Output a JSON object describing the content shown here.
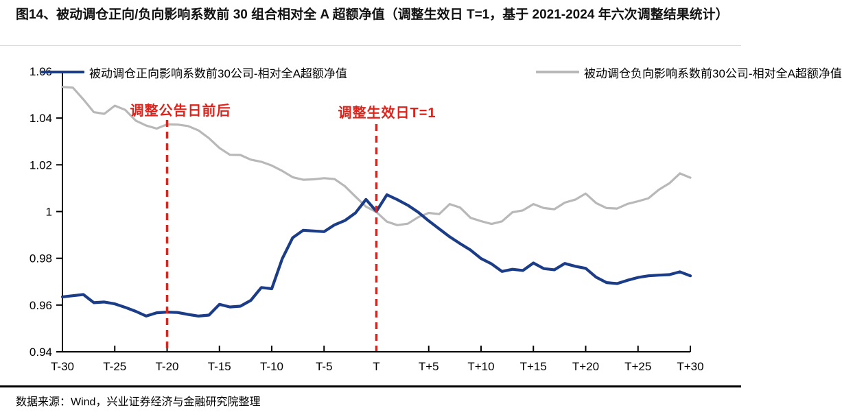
{
  "title": {
    "text": "图14、被动调仓正向/负向影响系数前 30 组合相对全 A 超额净值（调整生效日 T=1，基于 2021-2024 年六次调整结果统计）"
  },
  "footer": {
    "source": "数据来源：Wind，兴业证券经济与金融研究院整理"
  },
  "colors": {
    "positive_series": "#1b3c87",
    "negative_series": "#b8b8b8",
    "annotation_red": "#dc241c",
    "axis": "#000000"
  },
  "chart_data": {
    "type": "line",
    "title": "",
    "xlabel": "",
    "ylabel": "",
    "grid": false,
    "legend_position": "top",
    "xlim": [
      -30,
      30
    ],
    "ylim": [
      0.94,
      1.06
    ],
    "x_tick_labels": [
      "T-30",
      "T-25",
      "T-20",
      "T-15",
      "T-10",
      "T-5",
      "T",
      "T+5",
      "T+10",
      "T+15",
      "T+20",
      "T+25",
      "T+30"
    ],
    "x_tick_values": [
      -30,
      -25,
      -20,
      -15,
      -10,
      -5,
      0,
      5,
      10,
      15,
      20,
      25,
      30
    ],
    "y_tick_labels": [
      "0.94",
      "0.96",
      "0.98",
      "1",
      "1.02",
      "1.04",
      "1.06"
    ],
    "y_tick_values": [
      0.94,
      0.96,
      0.98,
      1.0,
      1.02,
      1.04,
      1.06
    ],
    "x": [
      -30,
      -29,
      -28,
      -27,
      -26,
      -25,
      -24,
      -23,
      -22,
      -21,
      -20,
      -19,
      -18,
      -17,
      -16,
      -15,
      -14,
      -13,
      -12,
      -11,
      -10,
      -9,
      -8,
      -7,
      -6,
      -5,
      -4,
      -3,
      -2,
      -1,
      0,
      1,
      2,
      3,
      4,
      5,
      6,
      7,
      8,
      9,
      10,
      11,
      12,
      13,
      14,
      15,
      16,
      17,
      18,
      19,
      20,
      21,
      22,
      23,
      24,
      25,
      26,
      27,
      28,
      29,
      30
    ],
    "series": [
      {
        "name": "被动调仓正向影响系数前30公司-相对全A超额净值",
        "color": "#1b3c87",
        "width": 4.2,
        "values": [
          0.9635,
          0.964,
          0.9645,
          0.961,
          0.9613,
          0.9605,
          0.959,
          0.9573,
          0.9553,
          0.9567,
          0.957,
          0.9568,
          0.956,
          0.9553,
          0.9557,
          0.9603,
          0.9592,
          0.9595,
          0.962,
          0.9675,
          0.967,
          0.9798,
          0.9888,
          0.992,
          0.9917,
          0.9914,
          0.9943,
          0.9962,
          0.9994,
          1.0052,
          1.0001,
          1.0072,
          1.0051,
          1.0027,
          0.9997,
          0.996,
          0.9926,
          0.9892,
          0.9863,
          0.9835,
          0.9799,
          0.9776,
          0.9744,
          0.9753,
          0.9748,
          0.978,
          0.9756,
          0.9751,
          0.9778,
          0.9766,
          0.9757,
          0.9719,
          0.9696,
          0.9692,
          0.9706,
          0.9718,
          0.9725,
          0.9728,
          0.973,
          0.9742,
          0.9725
        ]
      },
      {
        "name": "被动调仓负向影响系数前30公司-相对全A超额净值",
        "color": "#b8b8b8",
        "width": 3.2,
        "values": [
          1.0533,
          1.053,
          1.048,
          1.0425,
          1.0418,
          1.0453,
          1.0435,
          1.0389,
          1.0368,
          1.0355,
          1.0373,
          1.0372,
          1.0366,
          1.0347,
          1.0314,
          1.0272,
          1.0243,
          1.0242,
          1.0222,
          1.0213,
          1.0197,
          1.0174,
          1.0147,
          1.0136,
          1.0138,
          1.0143,
          1.0139,
          1.0108,
          1.0064,
          1.0021,
          0.9998,
          0.9957,
          0.9942,
          0.9948,
          0.9976,
          0.9994,
          0.9989,
          1.0032,
          1.0017,
          0.9973,
          0.9959,
          0.9947,
          0.9958,
          0.9997,
          1.0005,
          1.0032,
          1.0015,
          1.001,
          1.0038,
          1.0051,
          1.0077,
          1.0036,
          1.0015,
          1.0013,
          1.0033,
          1.0044,
          1.0057,
          1.0094,
          1.0121,
          1.0163,
          1.0145
        ]
      }
    ],
    "annotations": [
      {
        "text": "调整公告日前后",
        "x": -20
      },
      {
        "text": "调整生效日T=1",
        "x": 0
      }
    ]
  }
}
